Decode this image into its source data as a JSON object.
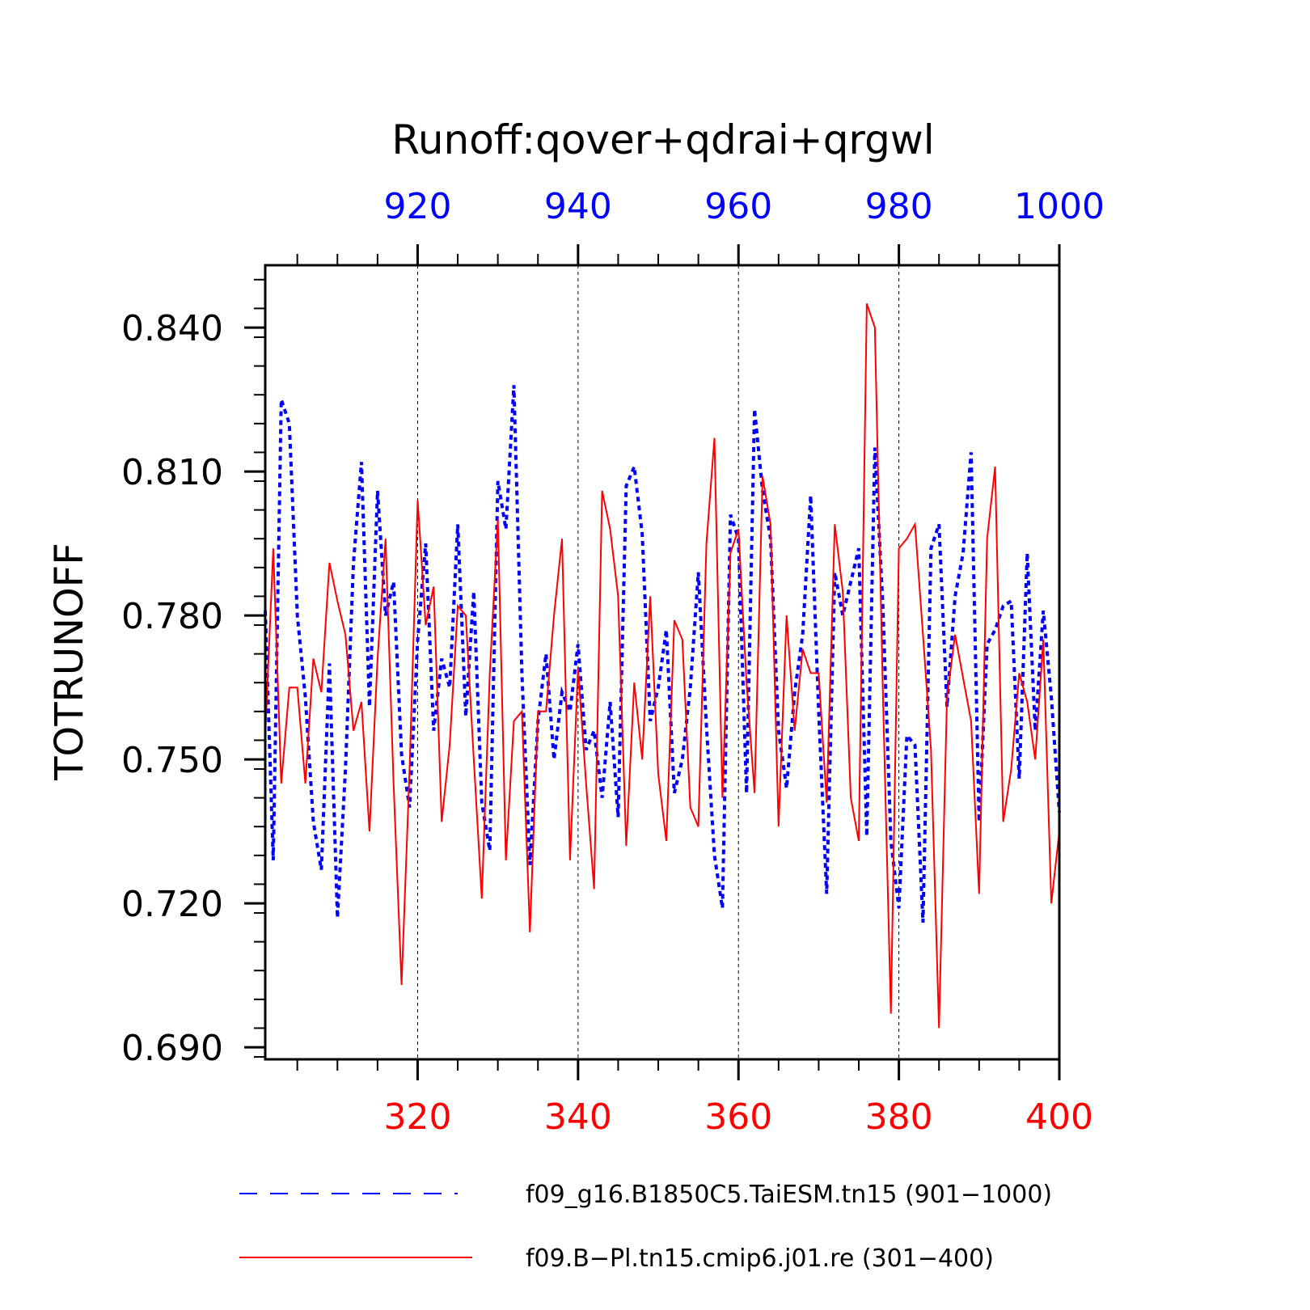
{
  "chart_data": {
    "type": "line",
    "title": "Runoff:qover+qdrai+qrgwl",
    "ylabel": "TOTRUNOFF",
    "ylim": [
      0.6875,
      0.853
    ],
    "yticks": [
      0.69,
      0.72,
      0.75,
      0.78,
      0.81,
      0.84
    ],
    "ytick_labels": [
      "0.690",
      "0.720",
      "0.750",
      "0.780",
      "0.810",
      "0.840"
    ],
    "grid": "vertical dashed lines at major x ticks",
    "legend_position": "bottom",
    "x_bottom": {
      "range": [
        301,
        400
      ],
      "ticks": [
        320,
        340,
        360,
        380,
        400
      ],
      "tick_labels": [
        "320",
        "340",
        "360",
        "380",
        "400"
      ],
      "color": "#ff0000"
    },
    "x_top": {
      "range": [
        901,
        1000
      ],
      "ticks": [
        920,
        940,
        960,
        980,
        1000
      ],
      "tick_labels": [
        "920",
        "940",
        "960",
        "980",
        "1000"
      ],
      "color": "#0000ff"
    },
    "series": [
      {
        "name": "f09_g16.B1850C5.TaiESM.tn15 (901−1000)",
        "color": "#0000ff",
        "style": "dashed",
        "axis": "top",
        "x": [
          901,
          902,
          903,
          904,
          905,
          906,
          907,
          908,
          909,
          910,
          911,
          912,
          913,
          914,
          915,
          916,
          917,
          918,
          919,
          920,
          921,
          922,
          923,
          924,
          925,
          926,
          927,
          928,
          929,
          930,
          931,
          932,
          933,
          934,
          935,
          936,
          937,
          938,
          939,
          940,
          941,
          942,
          943,
          944,
          945,
          946,
          947,
          948,
          949,
          950,
          951,
          952,
          953,
          954,
          955,
          956,
          957,
          958,
          959,
          960,
          961,
          962,
          963,
          964,
          965,
          966,
          967,
          968,
          969,
          970,
          971,
          972,
          973,
          974,
          975,
          976,
          977,
          978,
          979,
          980,
          981,
          982,
          983,
          984,
          985,
          986,
          987,
          988,
          989,
          990,
          991,
          992,
          993,
          994,
          995,
          996,
          997,
          998,
          999,
          1000
        ],
        "values": [
          0.781,
          0.729,
          0.825,
          0.82,
          0.78,
          0.763,
          0.737,
          0.727,
          0.77,
          0.717,
          0.748,
          0.791,
          0.812,
          0.761,
          0.806,
          0.78,
          0.787,
          0.751,
          0.74,
          0.775,
          0.795,
          0.756,
          0.771,
          0.765,
          0.799,
          0.759,
          0.785,
          0.741,
          0.731,
          0.808,
          0.798,
          0.828,
          0.768,
          0.728,
          0.758,
          0.772,
          0.75,
          0.764,
          0.76,
          0.774,
          0.752,
          0.756,
          0.742,
          0.762,
          0.738,
          0.807,
          0.811,
          0.797,
          0.758,
          0.765,
          0.777,
          0.743,
          0.75,
          0.765,
          0.789,
          0.757,
          0.73,
          0.719,
          0.801,
          0.796,
          0.743,
          0.823,
          0.806,
          0.796,
          0.756,
          0.744,
          0.764,
          0.776,
          0.805,
          0.76,
          0.722,
          0.789,
          0.78,
          0.787,
          0.794,
          0.734,
          0.815,
          0.782,
          0.733,
          0.719,
          0.755,
          0.753,
          0.716,
          0.794,
          0.799,
          0.761,
          0.784,
          0.793,
          0.814,
          0.737,
          0.774,
          0.777,
          0.782,
          0.783,
          0.746,
          0.793,
          0.756,
          0.781,
          0.763,
          0.739
        ]
      },
      {
        "name": "f09.B−Pl.tn15.cmip6.j01.re (301−400)",
        "color": "#ff0000",
        "style": "solid",
        "axis": "bottom",
        "x": [
          301,
          302,
          303,
          304,
          305,
          306,
          307,
          308,
          309,
          310,
          311,
          312,
          313,
          314,
          315,
          316,
          317,
          318,
          319,
          320,
          321,
          322,
          323,
          324,
          325,
          326,
          327,
          328,
          329,
          330,
          331,
          332,
          333,
          334,
          335,
          336,
          337,
          338,
          339,
          340,
          341,
          342,
          343,
          344,
          345,
          346,
          347,
          348,
          349,
          350,
          351,
          352,
          353,
          354,
          355,
          356,
          357,
          358,
          359,
          360,
          361,
          362,
          363,
          364,
          365,
          366,
          367,
          368,
          369,
          370,
          371,
          372,
          373,
          374,
          375,
          376,
          377,
          378,
          379,
          380,
          381,
          382,
          383,
          384,
          385,
          386,
          387,
          388,
          389,
          390,
          391,
          392,
          393,
          394,
          395,
          396,
          397,
          398,
          399,
          400
        ],
        "values": [
          0.755,
          0.794,
          0.745,
          0.765,
          0.765,
          0.745,
          0.771,
          0.764,
          0.791,
          0.783,
          0.776,
          0.756,
          0.762,
          0.735,
          0.771,
          0.796,
          0.745,
          0.703,
          0.748,
          0.804,
          0.778,
          0.786,
          0.737,
          0.753,
          0.782,
          0.78,
          0.75,
          0.721,
          0.768,
          0.8,
          0.729,
          0.758,
          0.76,
          0.714,
          0.76,
          0.76,
          0.78,
          0.796,
          0.729,
          0.769,
          0.745,
          0.723,
          0.806,
          0.798,
          0.784,
          0.732,
          0.766,
          0.75,
          0.784,
          0.747,
          0.733,
          0.779,
          0.775,
          0.74,
          0.736,
          0.795,
          0.817,
          0.742,
          0.793,
          0.798,
          0.766,
          0.743,
          0.809,
          0.799,
          0.736,
          0.78,
          0.756,
          0.773,
          0.768,
          0.768,
          0.741,
          0.799,
          0.785,
          0.742,
          0.733,
          0.845,
          0.84,
          0.764,
          0.697,
          0.794,
          0.796,
          0.799,
          0.776,
          0.752,
          0.694,
          0.763,
          0.776,
          0.767,
          0.758,
          0.722,
          0.796,
          0.811,
          0.737,
          0.748,
          0.768,
          0.762,
          0.75,
          0.775,
          0.72,
          0.735
        ]
      }
    ]
  }
}
